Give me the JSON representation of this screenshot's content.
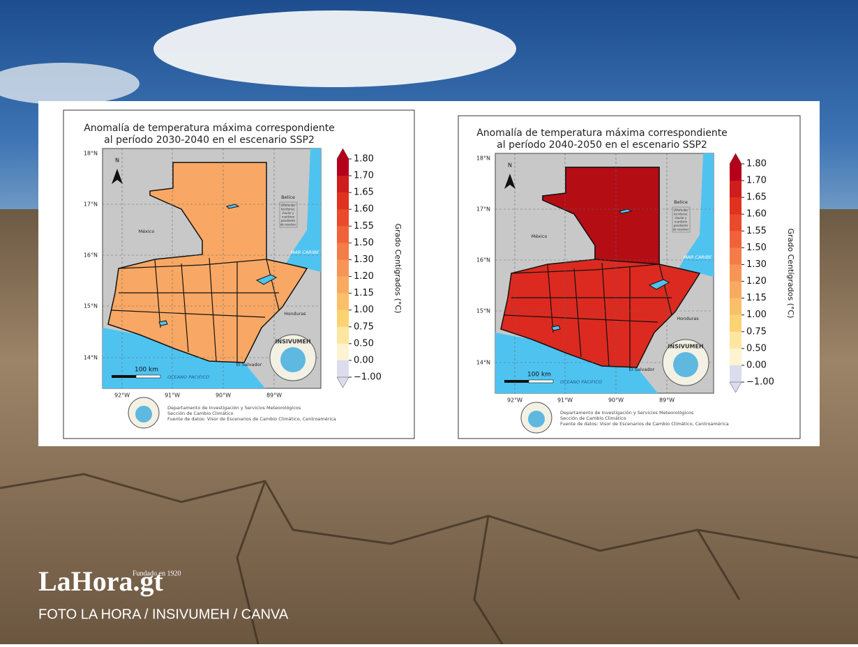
{
  "maps": [
    {
      "title_lines": [
        "Anomalía de temperatura máxima correspondiente",
        "al período 2030-2040 en el escenario SSP2"
      ],
      "fill": "#f8a864",
      "fill_dark": "#f59a55",
      "lat_labels": [
        "18°N",
        "17°N",
        "16°N",
        "15°N",
        "14°N"
      ],
      "lon_labels": [
        "92°W",
        "91°W",
        "90°W",
        "89°W"
      ],
      "north": "N",
      "places": {
        "mexico": "México",
        "belize": "Belice",
        "caribbean": "MAR CARIBE",
        "honduras": "Honduras",
        "el_salvador": "El Salvador",
        "pacific": "OCEANO PACIFICO"
      },
      "dispute_lines": [
        "Diferendo",
        "territorial,",
        "insular y",
        "marítimo",
        "pendiente",
        "de resolver"
      ],
      "scale": "100 km",
      "seal": "INSIVUMEH",
      "colorbar": {
        "ticks": [
          "1.80",
          "1.70",
          "1.65",
          "1.60",
          "1.55",
          "1.50",
          "1.30",
          "1.20",
          "1.15",
          "1.00",
          "0.75",
          "0.50",
          "0.00",
          "−1.00"
        ],
        "colors": [
          "#b5001b",
          "#cf1c1c",
          "#e0321f",
          "#ea4a2b",
          "#f0633a",
          "#f47c48",
          "#f79556",
          "#f8ab60",
          "#fabf69",
          "#fcd373",
          "#fde6a0",
          "#fef3d0",
          "#dcdcef"
        ],
        "label": "Grado Centígrados (°C)"
      },
      "footer_lines": [
        "Departamento de Investigación y Servicios Meteorológicos",
        "Sección de Cambio Climático",
        "Fuente de datos: Visor de Escenarios de Cambio Climático, Centroamérica"
      ]
    },
    {
      "title_lines": [
        "Anomalía de temperatura máxima correspondiente",
        "al período 2040-2050 en el escenario SSP2"
      ],
      "fill": "#dc2a20",
      "fill_dark": "#b50d14",
      "lat_labels": [
        "18°N",
        "17°N",
        "16°N",
        "15°N",
        "14°N"
      ],
      "lon_labels": [
        "92°W",
        "91°W",
        "90°W",
        "89°W"
      ],
      "north": "N",
      "places": {
        "mexico": "México",
        "belize": "Belice",
        "caribbean": "MAR CARIBE",
        "honduras": "Honduras",
        "el_salvador": "El Salvador",
        "pacific": "OCEANO PACIFICO"
      },
      "dispute_lines": [
        "Diferendo",
        "territorial,",
        "insular y",
        "marítimo",
        "pendiente",
        "de resolver"
      ],
      "scale": "100 km",
      "seal": "INSIVUMEH",
      "colorbar": {
        "ticks": [
          "1.80",
          "1.70",
          "1.65",
          "1.60",
          "1.55",
          "1.50",
          "1.30",
          "1.20",
          "1.15",
          "1.00",
          "0.75",
          "0.50",
          "0.00",
          "−1.00"
        ],
        "colors": [
          "#b5001b",
          "#cf1c1c",
          "#e0321f",
          "#ea4a2b",
          "#f0633a",
          "#f47c48",
          "#f79556",
          "#f8ab60",
          "#fabf69",
          "#fcd373",
          "#fde6a0",
          "#fef3d0",
          "#dcdcef"
        ],
        "label": "Grado Centígrados (°C)"
      },
      "footer_lines": [
        "Departamento de Investigación y Servicios Meteorológicos",
        "Sección de Cambio Climático",
        "Fuente de datos: Visor de Escenarios de Cambio Climático, Centroamérica"
      ]
    }
  ],
  "brand": {
    "name": "LaHora.gt",
    "tagline": "Fundado en 1920",
    "credit": "FOTO LA HORA / INSIVUMEH / CANVA"
  }
}
